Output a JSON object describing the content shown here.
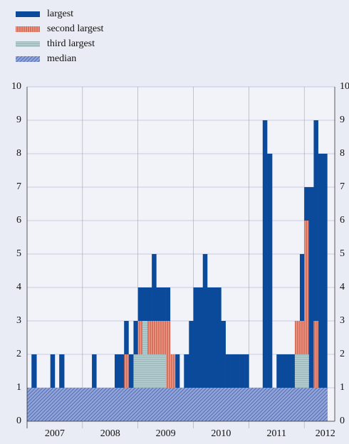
{
  "chart_data": {
    "type": "step-area",
    "x": [
      2007.0,
      2007.08,
      2007.17,
      2007.25,
      2007.33,
      2007.42,
      2007.5,
      2007.58,
      2007.67,
      2007.75,
      2007.83,
      2007.92,
      2008.0,
      2008.08,
      2008.17,
      2008.25,
      2008.33,
      2008.42,
      2008.5,
      2008.58,
      2008.67,
      2008.75,
      2008.83,
      2008.92,
      2009.0,
      2009.08,
      2009.17,
      2009.25,
      2009.33,
      2009.42,
      2009.5,
      2009.58,
      2009.67,
      2009.75,
      2009.83,
      2009.92,
      2010.0,
      2010.08,
      2010.17,
      2010.25,
      2010.33,
      2010.42,
      2010.5,
      2010.58,
      2010.67,
      2010.75,
      2010.83,
      2010.92,
      2011.0,
      2011.08,
      2011.17,
      2011.25,
      2011.33,
      2011.42,
      2011.5,
      2011.58,
      2011.67,
      2011.75,
      2011.83,
      2011.92,
      2012.0,
      2012.08,
      2012.17,
      2012.25,
      2012.33
    ],
    "series": [
      {
        "name": "largest",
        "color": "#0b4a9a",
        "pattern": "solid",
        "values": [
          1,
          2,
          1,
          1,
          1,
          2,
          1,
          2,
          1,
          1,
          1,
          1,
          1,
          1,
          2,
          1,
          1,
          1,
          1,
          2,
          2,
          3,
          2,
          3,
          4,
          4,
          4,
          5,
          4,
          4,
          4,
          2,
          2,
          1,
          2,
          3,
          4,
          4,
          5,
          4,
          4,
          4,
          3,
          2,
          2,
          2,
          2,
          2,
          1,
          1,
          1,
          9,
          8,
          1,
          2,
          2,
          2,
          2,
          3,
          5,
          7,
          7,
          9,
          8,
          8
        ]
      },
      {
        "name": "second largest",
        "color": "#e58d78",
        "pattern": "vertical",
        "values": [
          1,
          1,
          1,
          1,
          1,
          1,
          1,
          1,
          1,
          1,
          1,
          1,
          1,
          1,
          1,
          1,
          1,
          1,
          1,
          1,
          1,
          2,
          1,
          2,
          3,
          2,
          3,
          3,
          3,
          3,
          3,
          2,
          1,
          1,
          1,
          1,
          1,
          1,
          1,
          1,
          1,
          1,
          1,
          1,
          1,
          1,
          1,
          1,
          1,
          1,
          1,
          1,
          1,
          1,
          1,
          1,
          1,
          1,
          3,
          3,
          6,
          1,
          3,
          1,
          1
        ]
      },
      {
        "name": "third largest",
        "color": "#a8c3c6",
        "pattern": "horizontal",
        "values": [
          1,
          1,
          1,
          1,
          1,
          1,
          1,
          1,
          1,
          1,
          1,
          1,
          1,
          1,
          1,
          1,
          1,
          1,
          1,
          1,
          1,
          1,
          1,
          2,
          2,
          3,
          2,
          2,
          2,
          2,
          1,
          1,
          1,
          1,
          1,
          1,
          1,
          1,
          1,
          1,
          1,
          1,
          1,
          1,
          1,
          1,
          1,
          1,
          1,
          1,
          1,
          1,
          1,
          1,
          1,
          1,
          1,
          1,
          2,
          2,
          2,
          1,
          1,
          1,
          1
        ]
      },
      {
        "name": "median",
        "color": "#7f95cf",
        "pattern": "diagonal",
        "values": [
          1,
          1,
          1,
          1,
          1,
          1,
          1,
          1,
          1,
          1,
          1,
          1,
          1,
          1,
          1,
          1,
          1,
          1,
          1,
          1,
          1,
          1,
          1,
          1,
          1,
          1,
          1,
          1,
          1,
          1,
          1,
          1,
          1,
          1,
          1,
          1,
          1,
          1,
          1,
          1,
          1,
          1,
          1,
          1,
          1,
          1,
          1,
          1,
          1,
          1,
          1,
          1,
          1,
          1,
          1,
          1,
          1,
          1,
          1,
          1,
          1,
          1,
          1,
          1,
          1
        ]
      }
    ],
    "xlim": [
      2007,
      2012.55
    ],
    "xticks": [
      {
        "value": 2007.5,
        "label": "2007"
      },
      {
        "value": 2008.5,
        "label": "2008"
      },
      {
        "value": 2009.5,
        "label": "2009"
      },
      {
        "value": 2010.5,
        "label": "2010"
      },
      {
        "value": 2011.5,
        "label": "2011"
      },
      {
        "value": 2012.38,
        "label": "2012"
      }
    ],
    "xgrid": [
      2008,
      2009,
      2010,
      2011,
      2012
    ],
    "ylim": [
      0,
      10
    ],
    "yticks": [
      0,
      1,
      2,
      3,
      4,
      5,
      6,
      7,
      8,
      9,
      10
    ],
    "grid": true,
    "right_axis": true,
    "legend": "top-left"
  }
}
